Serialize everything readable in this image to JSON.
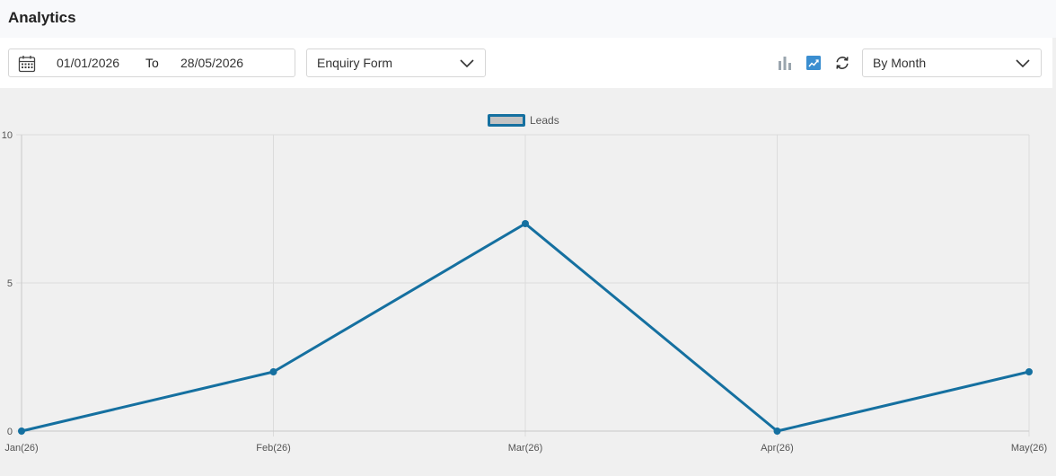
{
  "header": {
    "title": "Analytics"
  },
  "filters": {
    "date_from": "01/01/2026",
    "date_separator": "To",
    "date_to": "28/05/2026",
    "form_select": "Enquiry Form",
    "period_select": "By Month"
  },
  "toolbar_icons": [
    "bar-chart-icon",
    "line-chart-icon",
    "refresh-icon"
  ],
  "colors": {
    "series_line": "#1570a0",
    "legend_fill": "#c3c3c3",
    "active_icon": "#3b8ed0",
    "inactive_icon": "#9aa5ae",
    "grid": "#dcdcdc"
  },
  "chart_data": {
    "type": "line",
    "categories": [
      "Jan(26)",
      "Feb(26)",
      "Mar(26)",
      "Apr(26)",
      "May(26)"
    ],
    "series": [
      {
        "name": "Leads",
        "values": [
          0,
          2,
          7,
          0,
          2
        ]
      }
    ],
    "ylim": [
      0,
      10
    ],
    "yticks": [
      0,
      5,
      10
    ],
    "grid": true,
    "legend_position": "top-center"
  }
}
